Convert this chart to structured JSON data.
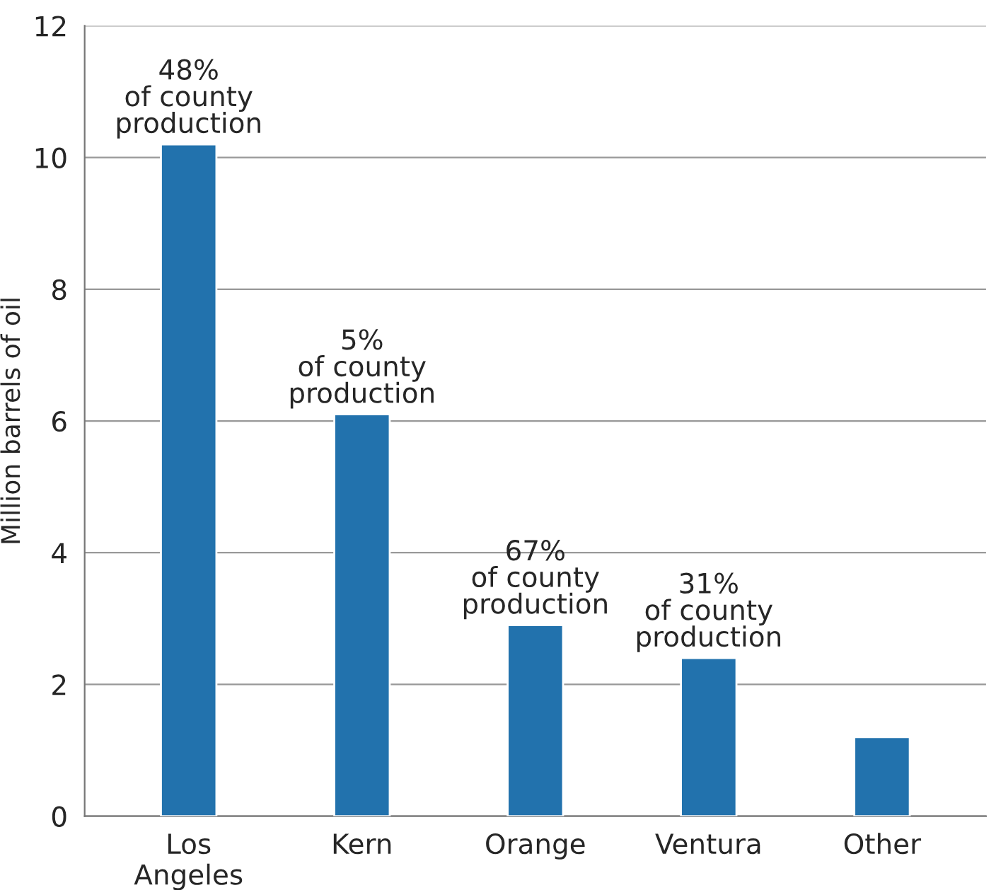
{
  "chart_data": {
    "type": "bar",
    "ylabel": "Million barrels of oil",
    "categories": [
      "Los\nAngeles",
      "Kern",
      "Orange",
      "Ventura",
      "Other"
    ],
    "values": [
      10.2,
      6.1,
      2.9,
      2.4,
      1.2
    ],
    "color": "#2272ad",
    "ylim": [
      0,
      12
    ],
    "yticks": [
      0,
      2,
      4,
      6,
      8,
      10,
      12
    ],
    "grid": "y",
    "annotations": [
      {
        "text": "48%\nof county\nproduction",
        "x": "Los\nAngeles",
        "y": 10.2
      },
      {
        "text": "5%\nof county\nproduction",
        "x": "Kern",
        "y": 6.1
      },
      {
        "text": "67%\nof county\nproduction",
        "x": "Orange",
        "y": 2.9
      },
      {
        "text": "31%\nof county\nproduction",
        "x": "Ventura",
        "y": 2.4
      }
    ]
  }
}
